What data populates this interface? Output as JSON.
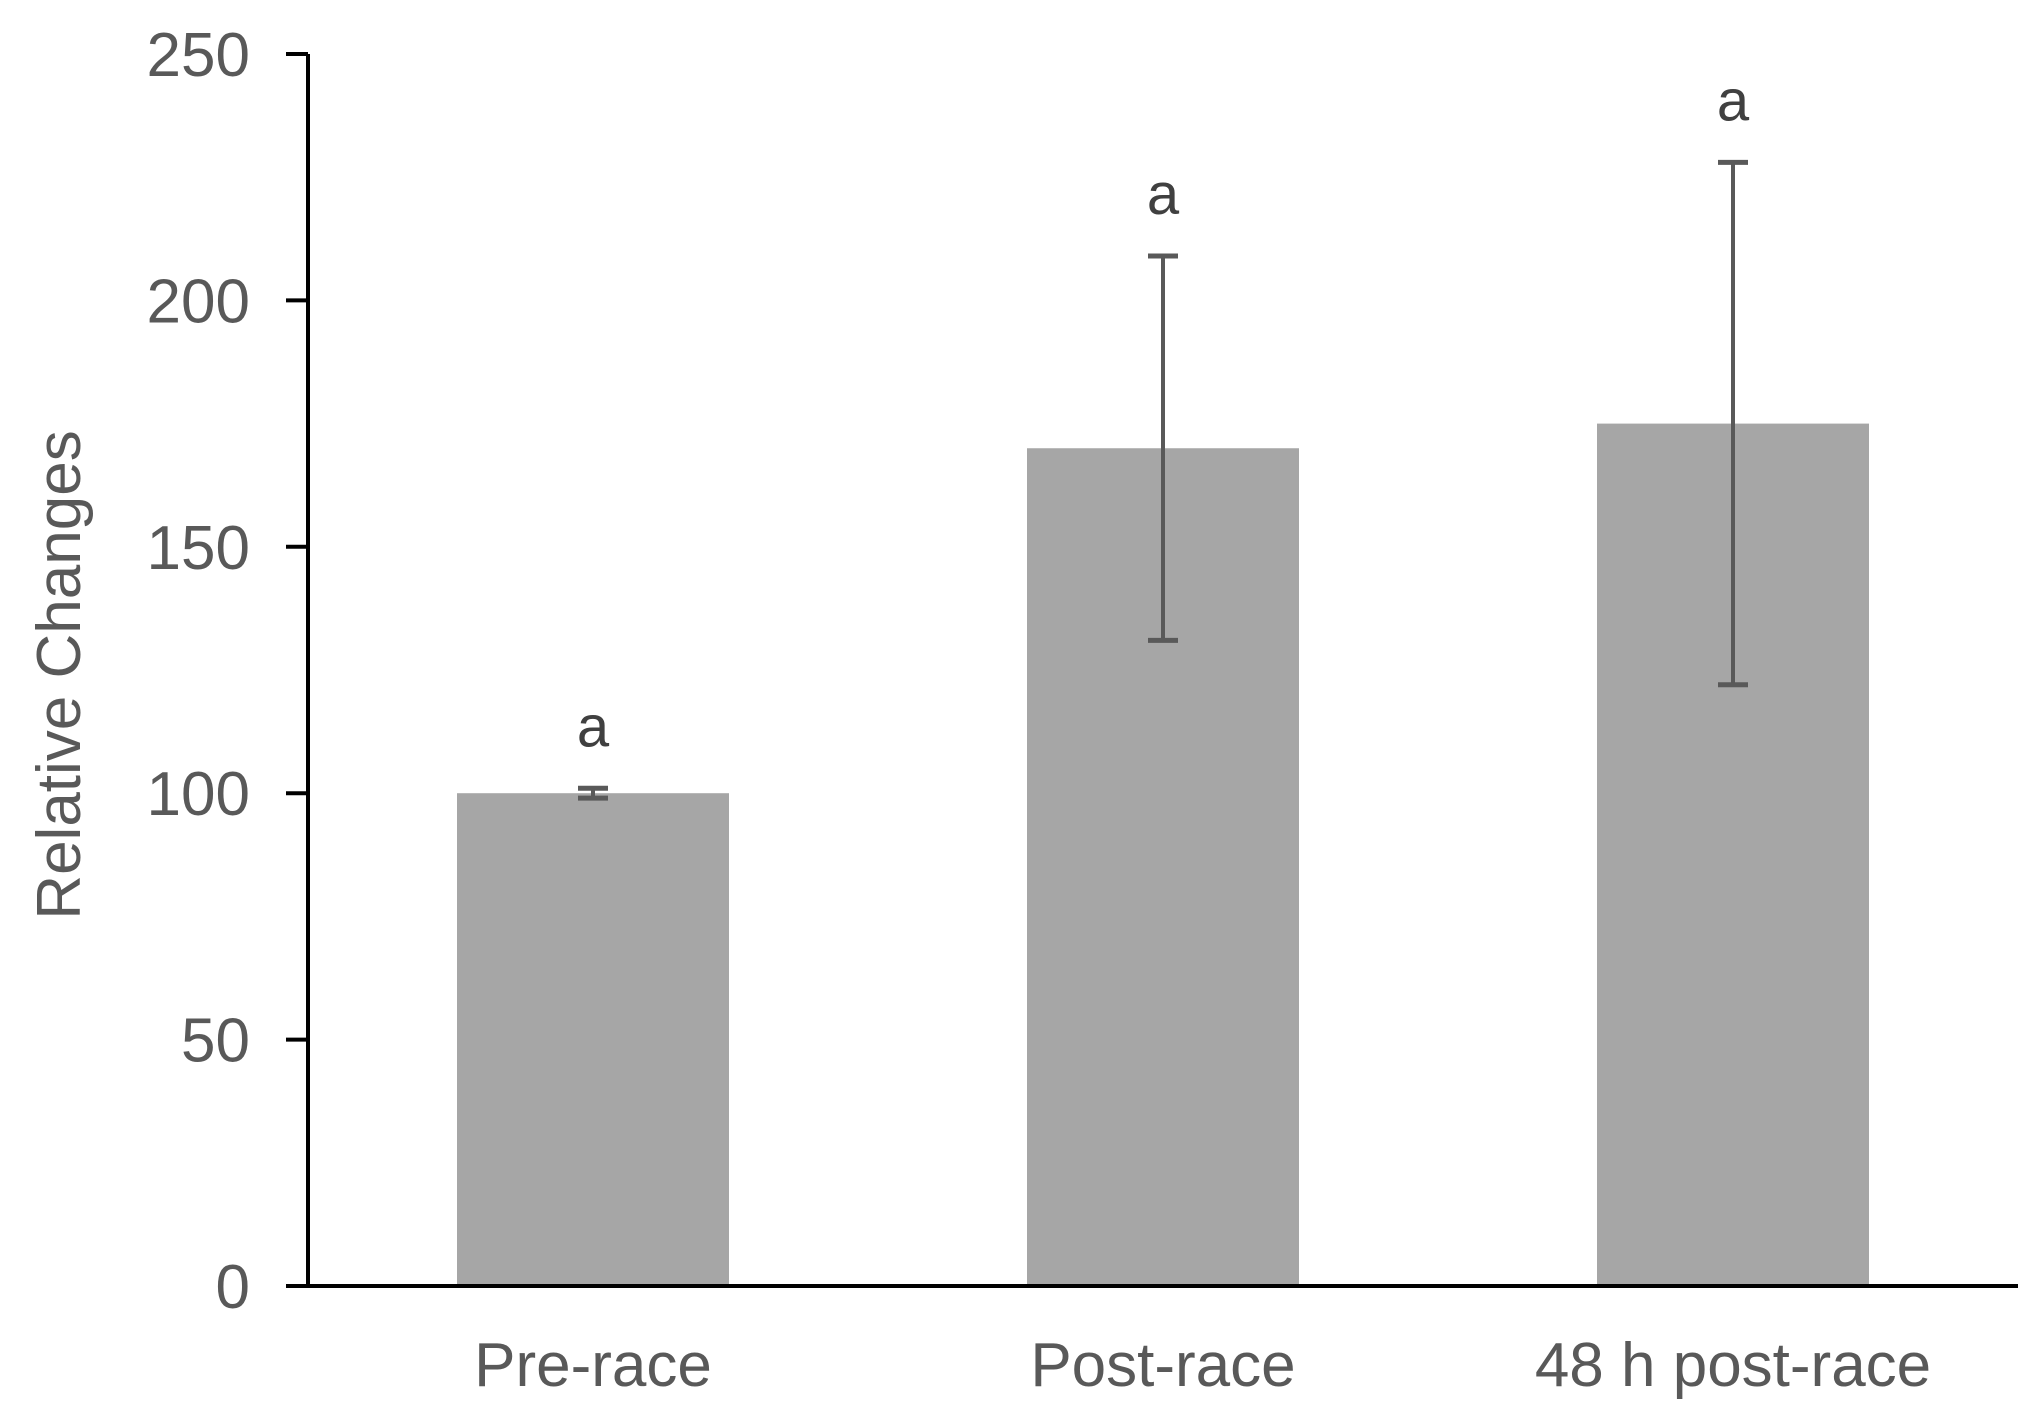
{
  "chart_data": {
    "type": "bar",
    "categories": [
      "Pre-race",
      "Post-race",
      "48 h post-race"
    ],
    "values": [
      100,
      170,
      175
    ],
    "errors": [
      1,
      39,
      53
    ],
    "annotations": [
      "a",
      "a",
      "a"
    ],
    "title": "",
    "xlabel": "",
    "ylabel": "Relative Changes",
    "ylim": [
      0,
      250
    ],
    "yticks": [
      0,
      50,
      100,
      150,
      200,
      250
    ],
    "grid": false,
    "bar_color": "#a6a6a6",
    "error_color": "#595959",
    "axis_color": "#000000"
  }
}
